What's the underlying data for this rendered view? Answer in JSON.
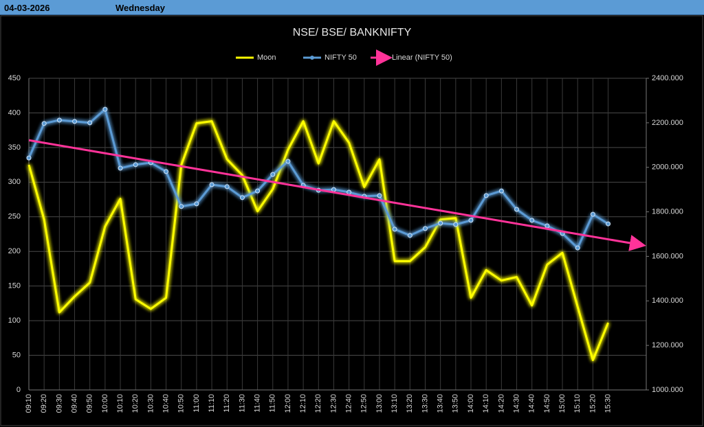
{
  "header": {
    "date": "04-03-2026",
    "day": "Wednesday"
  },
  "chart_data": {
    "type": "line",
    "title": "NSE/ BSE/ BANKNIFTY",
    "categories": [
      "09:10",
      "09:20",
      "09:30",
      "09:40",
      "09:50",
      "10:00",
      "10:10",
      "10:20",
      "10:30",
      "10:40",
      "10:50",
      "11:00",
      "11:10",
      "11:20",
      "11:30",
      "11:40",
      "11:50",
      "12:00",
      "12:10",
      "12:20",
      "12:30",
      "12:40",
      "12:50",
      "13:00",
      "13:10",
      "13:20",
      "13:30",
      "13:40",
      "13:50",
      "14:00",
      "14:10",
      "14:20",
      "14:30",
      "14:40",
      "14:50",
      "15:00",
      "15:10",
      "15:20",
      "15:30"
    ],
    "series": [
      {
        "name": "Moon",
        "color": "#ffff00",
        "values": [
          325,
          246,
          112,
          135,
          155,
          236,
          276,
          131,
          117,
          133,
          325,
          385,
          388,
          333,
          310,
          258,
          290,
          347,
          388,
          327,
          388,
          357,
          293,
          333,
          186,
          186,
          206,
          246,
          248,
          133,
          173,
          158,
          163,
          122,
          181,
          198,
          120,
          43,
          97
        ]
      },
      {
        "name": "NIFTY 50",
        "color": "#5b9bd5",
        "axis": "y2",
        "markers": true,
        "values": [
          2042,
          2197,
          2212,
          2206,
          2200,
          2261,
          1996,
          2012,
          2021,
          1981,
          1824,
          1836,
          1922,
          1913,
          1864,
          1894,
          1968,
          2027,
          1919,
          1897,
          1900,
          1888,
          1870,
          1873,
          1722,
          1694,
          1725,
          1749,
          1743,
          1762,
          1873,
          1894,
          1811,
          1762,
          1737,
          1703,
          1638,
          1789,
          1746
        ]
      }
    ],
    "trendline": {
      "name": "Linear (NIFTY 50)",
      "color": "#ff3399",
      "of": 1
    },
    "ylim": [
      0,
      450
    ],
    "yticks": [
      0,
      50,
      100,
      150,
      200,
      250,
      300,
      350,
      400,
      450
    ],
    "y2lim": [
      1000,
      2400
    ],
    "y2ticks": [
      {
        "value": 1000,
        "label": "1000.000"
      },
      {
        "value": 1200,
        "label": "1200.000"
      },
      {
        "value": 1400,
        "label": "1400.000"
      },
      {
        "value": 1600,
        "label": "1600.000"
      },
      {
        "value": 1800,
        "label": "1800.000"
      },
      {
        "value": 2000,
        "label": "2000.000"
      },
      {
        "value": 2200,
        "label": "2200.000"
      },
      {
        "value": 2400,
        "label": "2400.000"
      }
    ],
    "grid": true,
    "legend": "top"
  }
}
